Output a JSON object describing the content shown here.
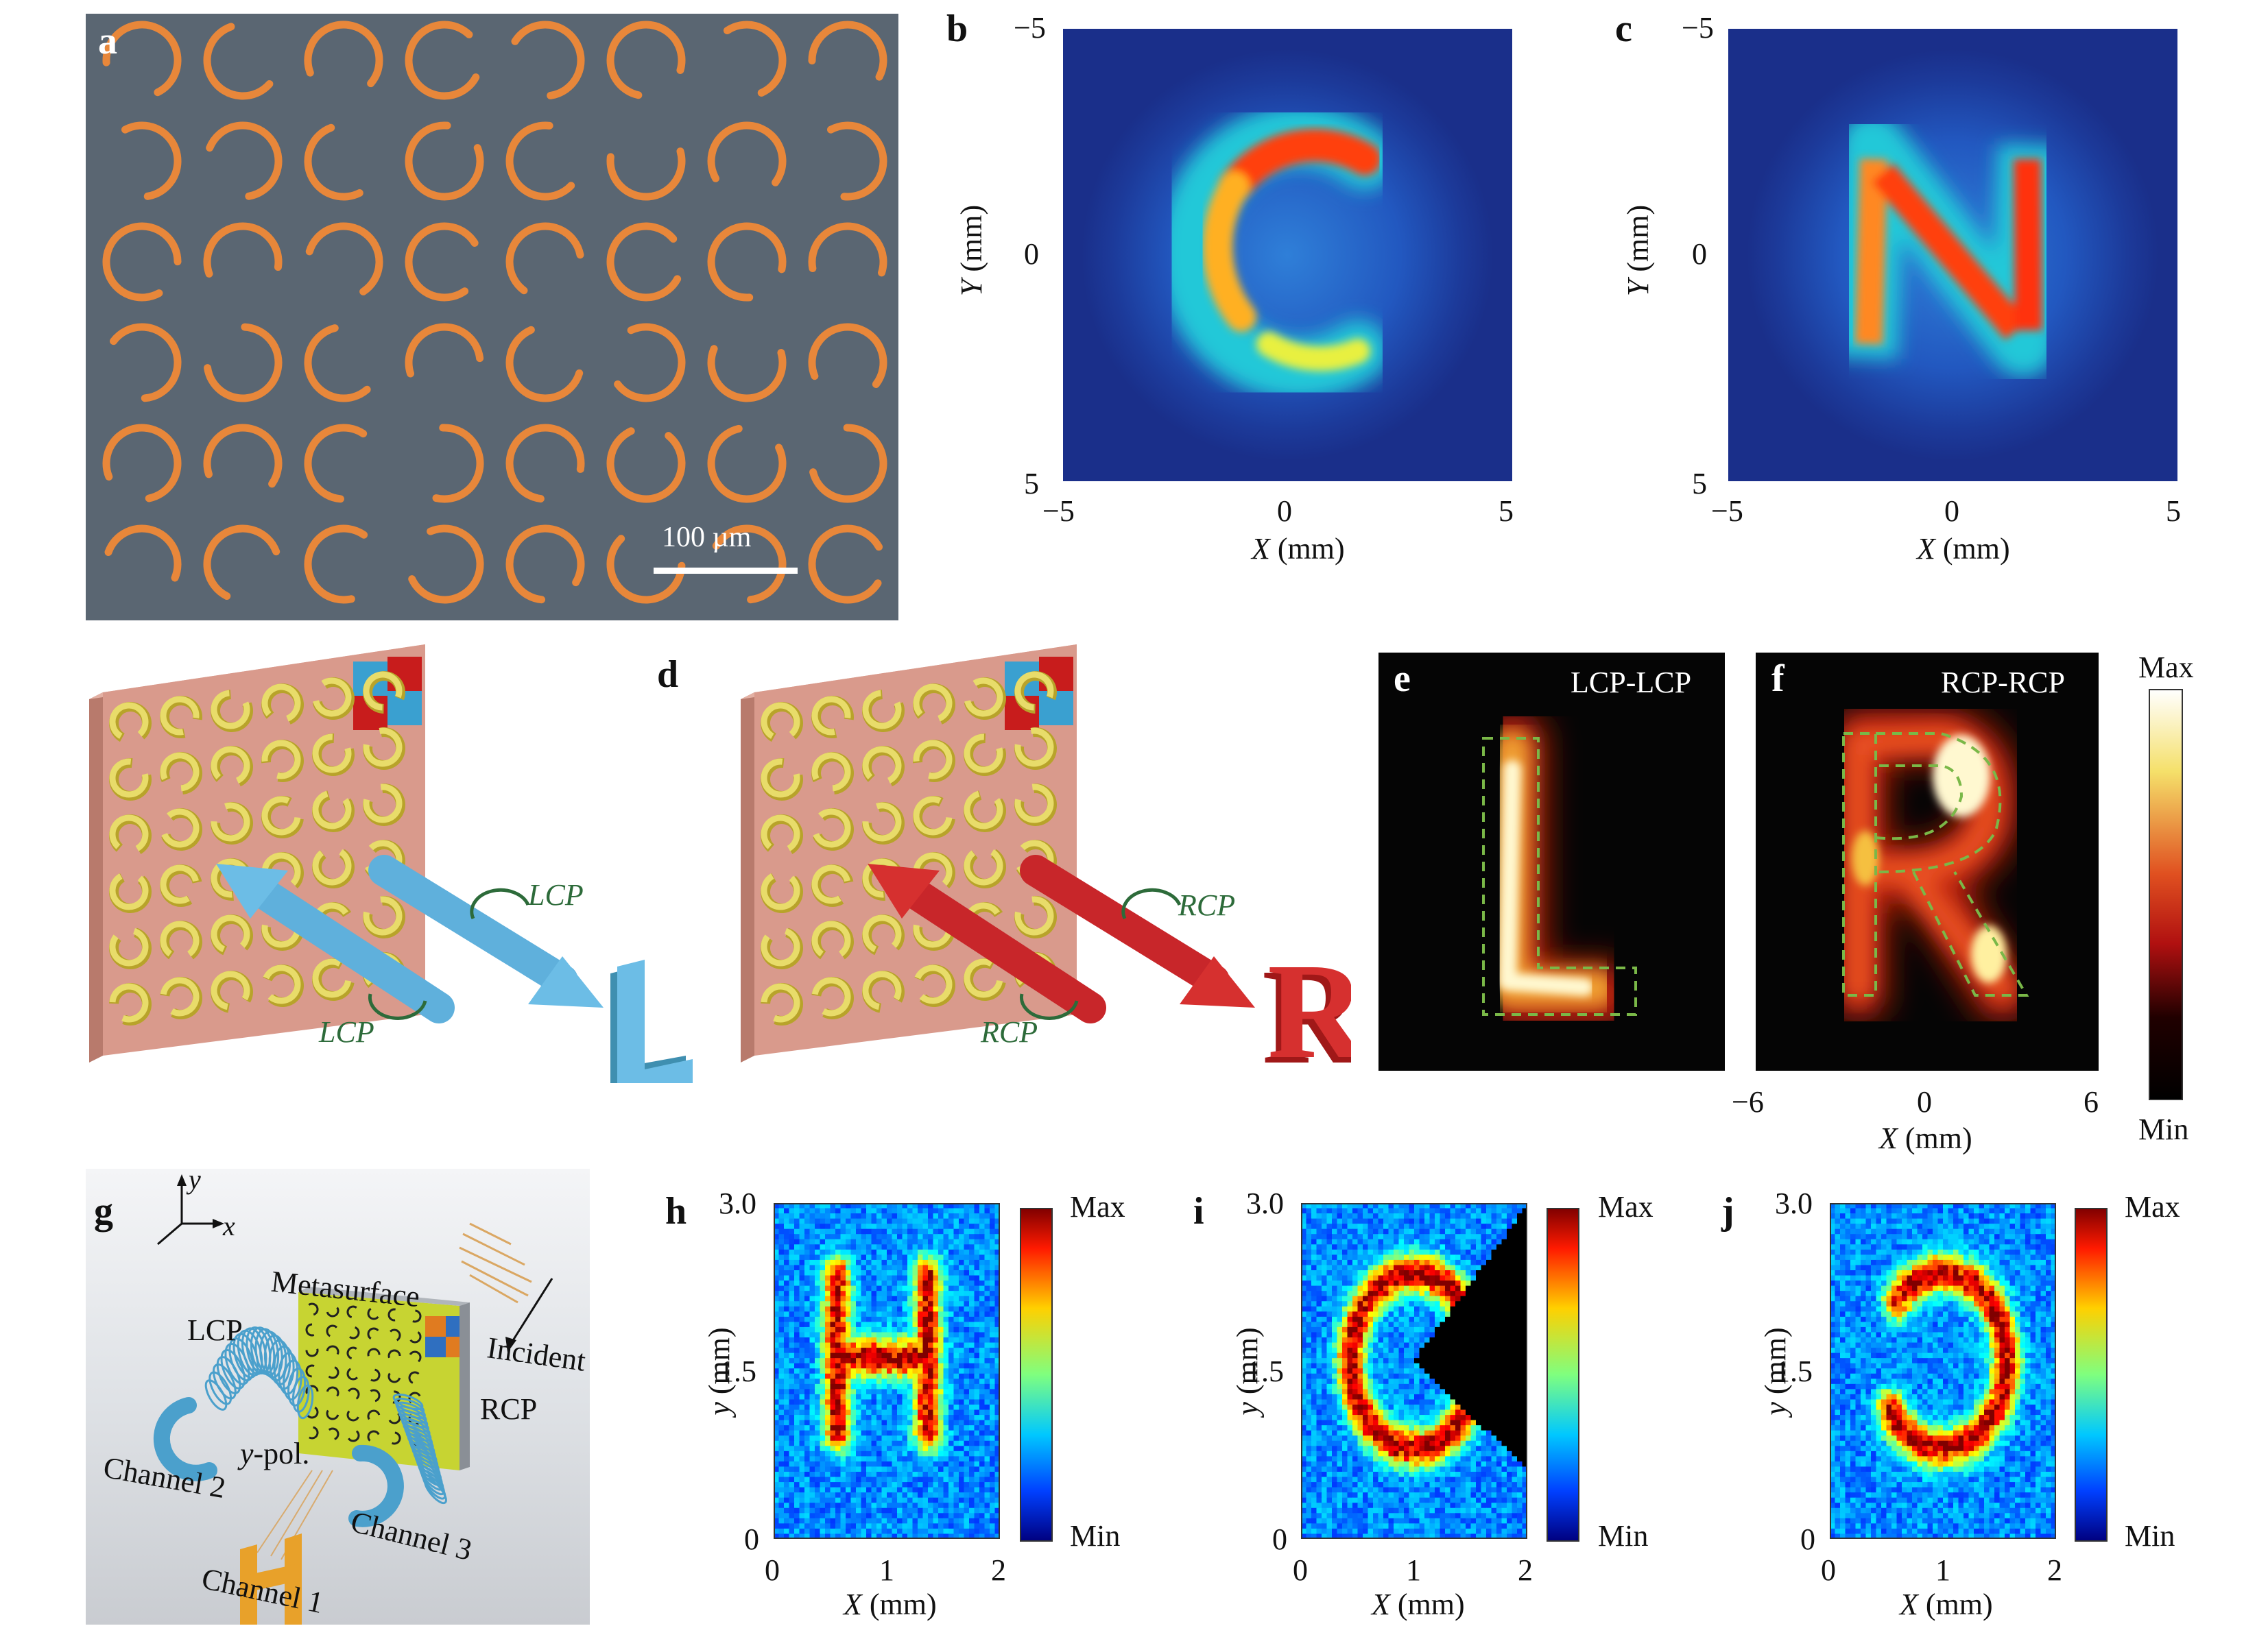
{
  "panels": {
    "a": {
      "label": "a",
      "scalebar": "100 µm"
    },
    "b": {
      "label": "b",
      "xticks": [
        "−5",
        "0",
        "5"
      ],
      "yticks": [
        "−5",
        "0",
        "5"
      ],
      "xlabel": "X",
      "ylabel": "Y",
      "unit": "(mm)"
    },
    "c": {
      "label": "c",
      "xticks": [
        "−5",
        "0",
        "5"
      ],
      "yticks": [
        "−5",
        "0",
        "5"
      ],
      "xlabel": "X",
      "ylabel": "Y",
      "unit": "(mm)"
    },
    "d": {
      "label": "d",
      "left": {
        "in": "LCP",
        "out": "LCP",
        "letter": "L"
      },
      "right": {
        "in": "RCP",
        "out": "RCP",
        "letter": "R"
      }
    },
    "e": {
      "label": "e",
      "title": "LCP-LCP"
    },
    "f": {
      "label": "f",
      "title": "RCP-RCP",
      "xticks": [
        "−6",
        "0",
        "6"
      ],
      "xlabel": "X",
      "unit": "(mm)",
      "cmax": "Max",
      "cmin": "Min"
    },
    "g": {
      "label": "g",
      "axis_y": "y",
      "axis_x": "x",
      "metasurface": "Metasurface",
      "incident": "Incident",
      "lcp": "LCP",
      "rcp": "RCP",
      "ypol_italic": "y",
      "ypol_rest": "-pol.",
      "ch1": "Channel 1",
      "ch2": "Channel 2",
      "ch3": "Channel 3"
    },
    "h": {
      "label": "h",
      "yticks": [
        "3.0",
        "1.5",
        "0"
      ],
      "xticks": [
        "0",
        "1",
        "2"
      ],
      "xlabel": "X",
      "ylabel": "y",
      "unit": "(mm)",
      "cmax": "Max",
      "cmin": "Min"
    },
    "i": {
      "label": "i",
      "yticks": [
        "3.0",
        "1.5",
        "0"
      ],
      "xticks": [
        "0",
        "1",
        "2"
      ],
      "xlabel": "X",
      "ylabel": "y",
      "unit": "(mm)",
      "cmax": "Max",
      "cmin": "Min"
    },
    "j": {
      "label": "j",
      "yticks": [
        "3.0",
        "1.5",
        "0"
      ],
      "xticks": [
        "0",
        "1",
        "2"
      ],
      "xlabel": "X",
      "ylabel": "y",
      "unit": "(mm)",
      "cmax": "Max",
      "cmin": "Min"
    }
  },
  "colors": {
    "jet_bg": "#1a2f8a",
    "micro_bg": "#5a6672",
    "ring": "#e8873a",
    "substrate": "#d99a8c",
    "gold": "#d8c64a",
    "blue_arrow": "#5fb0dc",
    "red_arrow": "#c8262a",
    "hot_bg": "#050505"
  }
}
